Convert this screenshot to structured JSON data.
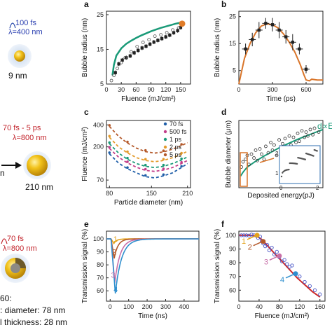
{
  "figure": {
    "left_column": {
      "row1": {
        "line1": "100 fs",
        "line2": "λ=400 nm",
        "size_label": "9 nm"
      },
      "row2": {
        "line1": "70 fs - 5 ps",
        "line2": "λ=800 nm",
        "size_left": "n",
        "size_label": "210 nm"
      },
      "row3": {
        "line1": "70 fs",
        "line2": "λ=800 nm",
        "text1": "60:",
        "text2": ": diameter: 78 nm",
        "text3": "l thickness: 28 nm"
      }
    },
    "colors": {
      "green": "#1a9a78",
      "orange": "#d9752a",
      "black": "#222222",
      "blue": "#1f5ea8",
      "gold": "#f2c21a"
    }
  },
  "chart_data": [
    {
      "id": "a",
      "type": "scatter",
      "panel_letter": "a",
      "xlabel": "Fluence (mJ/cm²)",
      "ylabel": "Bubble radius (nm)",
      "xlim": [
        0,
        170
      ],
      "ylim": [
        5,
        26
      ],
      "xticks": [
        "0",
        "30",
        "60",
        "90",
        "120",
        "150"
      ],
      "yticks": [
        "5",
        "15",
        "25"
      ],
      "series": [
        {
          "style": "curve",
          "color": "#1a9a78",
          "x": [
            12,
            15,
            20,
            30,
            40,
            50,
            60,
            70,
            80,
            90,
            100,
            110,
            120,
            130,
            140,
            150,
            155
          ],
          "y": [
            7.5,
            10.5,
            13.2,
            15.3,
            16.6,
            17.5,
            18.3,
            19.0,
            19.6,
            20.2,
            20.7,
            21.2,
            21.6,
            22.0,
            22.4,
            22.7,
            22.9
          ]
        },
        {
          "style": "filled-square",
          "color": "#222222",
          "x": [
            18,
            25,
            32,
            40,
            48,
            56,
            64,
            72,
            80,
            88,
            96,
            104,
            112,
            120,
            128,
            136,
            144,
            150
          ],
          "y": [
            8.3,
            10.8,
            11.9,
            12.6,
            13.1,
            14.0,
            14.7,
            15.4,
            15.9,
            16.5,
            17.1,
            17.6,
            18.1,
            18.6,
            19.1,
            19.8,
            20.4,
            21.3
          ]
        },
        {
          "style": "open-circle",
          "color": "#555555",
          "x": [
            10,
            15,
            22,
            30,
            38,
            50,
            62,
            74,
            86,
            98,
            110,
            122,
            134,
            146
          ],
          "y": [
            6.0,
            7.5,
            9.5,
            11.2,
            12.6,
            14.3,
            15.8,
            17.0,
            17.8,
            18.8,
            19.2,
            19.8,
            20.6,
            21.2
          ]
        },
        {
          "style": "big-dot",
          "color": "#e07b27",
          "x": [
            153
          ],
          "y": [
            22.4
          ]
        }
      ]
    },
    {
      "id": "b",
      "type": "scatter",
      "panel_letter": "b",
      "xlabel": "Time (ps)",
      "ylabel": "Bubble radius (nm)",
      "xlim": [
        0,
        750
      ],
      "ylim": [
        0,
        27
      ],
      "xticks": [
        "0",
        "300",
        "600"
      ],
      "yticks": [
        "5",
        "15",
        "25"
      ],
      "series": [
        {
          "style": "curve",
          "color": "#d9752a",
          "x": [
            0,
            50,
            100,
            150,
            200,
            250,
            300,
            350,
            400,
            450,
            500,
            550,
            580,
            600,
            630,
            650,
            700,
            750
          ],
          "y": [
            0,
            9.5,
            15,
            19,
            21.5,
            22.3,
            22,
            20.8,
            18.5,
            15.5,
            11.8,
            7,
            3.5,
            1.5,
            1.2,
            1.8,
            1.5,
            1.5
          ]
        },
        {
          "style": "error-point",
          "color": "#222222",
          "x": [
            60,
            120,
            180,
            240,
            300,
            360,
            420,
            480,
            540,
            600
          ],
          "y": [
            13,
            16.5,
            20,
            22.5,
            22,
            20,
            17.5,
            15.5,
            13,
            5.5
          ],
          "err": [
            2,
            2.5,
            3,
            2,
            2.5,
            3,
            2.5,
            3,
            2,
            1.5
          ]
        }
      ]
    },
    {
      "id": "c",
      "type": "scatter",
      "panel_letter": "c",
      "xlabel": "Particle diameter (nm)",
      "ylabel": "Fluence (mJ/cm²)",
      "xlim": [
        75,
        215
      ],
      "ylim": [
        55,
        460
      ],
      "yscale": "log",
      "xticks": [
        "80",
        "150",
        "210"
      ],
      "yticks": [
        "70",
        "200",
        "400"
      ],
      "legend": [
        "70 fs",
        "500 fs",
        "1 ps",
        "2 ps",
        "5 ps"
      ],
      "series": [
        {
          "name": "70 fs",
          "color": "#1f5ea8",
          "x": [
            80,
            95,
            110,
            125,
            140,
            155,
            170,
            185,
            200,
            210
          ],
          "y": [
            160,
            120,
            100,
            88,
            78,
            75,
            80,
            88,
            104,
            118
          ]
        },
        {
          "name": "500 fs",
          "color": "#c23e8a",
          "x": [
            80,
            95,
            110,
            125,
            140,
            155,
            170,
            185,
            200,
            210
          ],
          "y": [
            190,
            145,
            120,
            105,
            95,
            92,
            96,
            104,
            118,
            130
          ]
        },
        {
          "name": "1 ps",
          "color": "#1a9a78",
          "x": [
            80,
            95,
            110,
            125,
            140,
            155,
            170,
            185,
            200,
            210
          ],
          "y": [
            220,
            165,
            135,
            118,
            108,
            104,
            108,
            118,
            132,
            146
          ]
        },
        {
          "name": "2 ps",
          "color": "#e39b2c",
          "x": [
            80,
            95,
            110,
            125,
            140,
            155,
            170,
            185,
            200,
            210
          ],
          "y": [
            270,
            200,
            165,
            142,
            130,
            125,
            130,
            142,
            158,
            174
          ]
        },
        {
          "name": "5 ps",
          "color": "#b4592a",
          "x": [
            80,
            95,
            110,
            125,
            140,
            155,
            170,
            185,
            200,
            210
          ],
          "y": [
            380,
            280,
            225,
            192,
            172,
            164,
            170,
            186,
            208,
            228
          ]
        }
      ]
    },
    {
      "id": "d",
      "type": "scatter",
      "panel_letter": "d",
      "xlabel": "Deposited energy(pJ)",
      "ylabel": "Bubble diameter (μm)",
      "xlim": [
        0,
        100
      ],
      "ylim": [
        0,
        5.2
      ],
      "curve_label": "d∝E",
      "inset": {
        "xticks": [
          "0",
          "2"
        ],
        "yticks": [
          "1",
          "2"
        ]
      },
      "series": [
        {
          "style": "curve",
          "color": "#1a9a78",
          "x": [
            2,
            5,
            10,
            20,
            30,
            40,
            50,
            60,
            70,
            80,
            90,
            100
          ],
          "y": [
            0.9,
            1.2,
            1.6,
            2.05,
            2.45,
            2.8,
            3.15,
            3.45,
            3.75,
            4.0,
            4.25,
            4.5
          ]
        },
        {
          "style": "open-circle",
          "color": "#333333",
          "x": [
            3,
            5,
            8,
            10,
            12,
            15,
            18,
            20,
            22,
            25,
            27,
            30,
            32,
            35,
            38,
            40,
            42,
            45,
            48,
            50,
            52,
            55,
            58,
            60,
            62,
            65,
            68,
            70,
            72,
            75,
            78,
            80,
            82,
            85,
            88,
            90,
            95
          ],
          "y": [
            1.6,
            2.0,
            2.2,
            2.5,
            1.8,
            2.6,
            2.3,
            2.9,
            2.1,
            3.0,
            2.6,
            2.2,
            3.2,
            2.7,
            3.5,
            2.9,
            3.3,
            2.5,
            3.7,
            3.1,
            3.4,
            3.8,
            2.9,
            4.0,
            3.3,
            3.9,
            3.5,
            4.2,
            3.6,
            4.4,
            3.9,
            4.3,
            4.0,
            4.5,
            4.1,
            4.6,
            4.3
          ]
        }
      ]
    },
    {
      "id": "e",
      "type": "line",
      "panel_letter": "e",
      "xlabel": "Time (ns)",
      "ylabel": "Transmission signal (%)",
      "xlim": [
        -20,
        480
      ],
      "ylim": [
        52,
        106
      ],
      "xticks": [
        "0",
        "100",
        "200",
        "300",
        "400"
      ],
      "yticks": [
        "60",
        "70",
        "80",
        "90",
        "100"
      ],
      "curve_labels": [
        "1",
        "2",
        "3",
        "4"
      ],
      "series": [
        {
          "name": "1",
          "color": "#e3a21a",
          "min_x": 20,
          "min_y": 96.5,
          "recover": 45
        },
        {
          "name": "2",
          "color": "#b4592a",
          "min_x": 22,
          "min_y": 85,
          "recover": 60
        },
        {
          "name": "3",
          "color": "#c86fa8",
          "min_x": 25,
          "min_y": 66,
          "recover": 85
        },
        {
          "name": "4",
          "color": "#2f8fce",
          "min_x": 28,
          "min_y": 58,
          "recover": 100
        }
      ]
    },
    {
      "id": "f",
      "type": "scatter",
      "panel_letter": "f",
      "xlabel": "Fluence (mJ/cm²)",
      "ylabel": "Transmission signal (%)",
      "xlim": [
        0,
        170
      ],
      "ylim": [
        52,
        103
      ],
      "xticks": [
        "0",
        "40",
        "80",
        "120",
        "160"
      ],
      "yticks": [
        "60",
        "70",
        "80",
        "90",
        "100"
      ],
      "curve_labels": [
        "1",
        "2",
        "3",
        "4"
      ],
      "series": [
        {
          "style": "curve",
          "color": "#cc2a2a",
          "x": [
            0,
            20,
            35,
            45,
            55,
            70,
            85,
            100,
            115,
            130,
            145,
            160
          ],
          "y": [
            100,
            100,
            99.5,
            97,
            93,
            87,
            81,
            75,
            69,
            64,
            59,
            55
          ]
        },
        {
          "style": "open-circle",
          "color": "#4a57c8",
          "x": [
            5,
            10,
            15,
            20,
            25,
            30,
            35,
            38,
            42,
            45,
            48,
            52,
            56,
            60,
            65,
            70,
            75,
            80,
            85,
            90,
            95,
            100,
            105,
            110,
            120,
            130,
            140,
            150,
            160
          ],
          "y": [
            100,
            100,
            100,
            99.8,
            100.5,
            100,
            99.5,
            98,
            99,
            96,
            94,
            92,
            93,
            89,
            91,
            86,
            88,
            84,
            81,
            82,
            79,
            77,
            78,
            72,
            70,
            66,
            63,
            60,
            57
          ]
        },
        {
          "style": "highlight",
          "colors": [
            "#e3a21a",
            "#b4592a",
            "#c86fa8",
            "#2f8fce"
          ],
          "x": [
            36,
            48,
            80,
            112
          ],
          "y": [
            100,
            95.5,
            85,
            72
          ]
        }
      ]
    }
  ]
}
